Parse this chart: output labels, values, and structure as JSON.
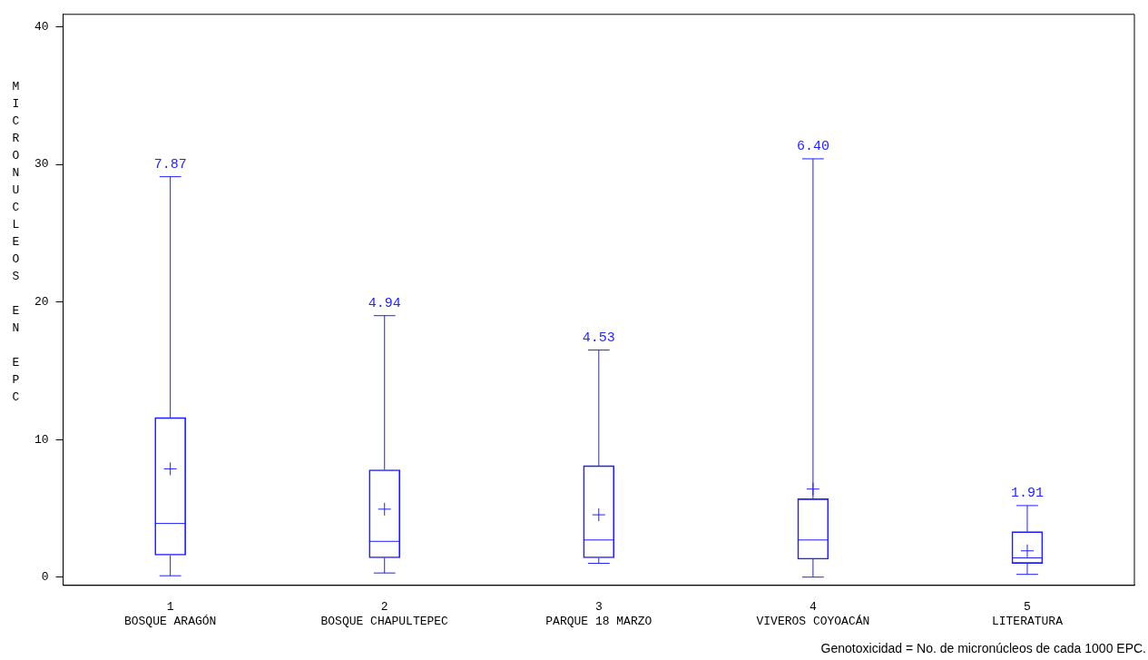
{
  "chart_data": {
    "type": "box",
    "ylabel": "MICRONUCLEOS EN EPC",
    "categories": [
      "1\nBOSQUE ARAGÓN",
      "2\nBOSQUE CHAPULTEPEC",
      "3\nPARQUE 18 MARZO",
      "4\nVIVEROS COYOACÁN",
      "5\nLITERATURA"
    ],
    "color": "#1f1fff",
    "boxes": [
      {
        "low": 0.1,
        "q1": 1.6,
        "median": 3.9,
        "q3": 11.6,
        "high": 29.1,
        "mean": 7.87
      },
      {
        "low": 0.3,
        "q1": 1.4,
        "median": 2.6,
        "q3": 7.8,
        "high": 19.0,
        "mean": 4.94
      },
      {
        "low": 1.0,
        "q1": 1.4,
        "median": 2.7,
        "q3": 8.1,
        "high": 16.5,
        "mean": 4.53
      },
      {
        "low": 0.0,
        "q1": 1.3,
        "median": 2.7,
        "q3": 5.7,
        "high": 30.4,
        "mean": 6.4
      },
      {
        "low": 0.2,
        "q1": 1.0,
        "median": 1.4,
        "q3": 3.3,
        "high": 5.2,
        "mean": 1.91
      }
    ],
    "ylim": [
      -0.6,
      40.9
    ],
    "yticks": [
      0,
      10,
      20,
      30,
      40
    ],
    "grid": false,
    "legend": false,
    "marker": "cross",
    "annotations": [
      {
        "text": "7.87",
        "x": "1\nBOSQUE ARAGÓN",
        "y": 29.1
      },
      {
        "text": "4.94",
        "x": "2\nBOSQUE CHAPULTEPEC",
        "y": 19.0
      },
      {
        "text": "4.53",
        "x": "3\nPARQUE 18 MARZO",
        "y": 16.5
      },
      {
        "text": "6.40",
        "x": "4\nVIVEROS COYOACÁN",
        "y": 30.4
      },
      {
        "text": "1.91",
        "x": "5\nLITERATURA",
        "y": 5.2
      },
      "Genotoxicidad = No. de micronúcleos de cada 1000 EPC."
    ]
  }
}
